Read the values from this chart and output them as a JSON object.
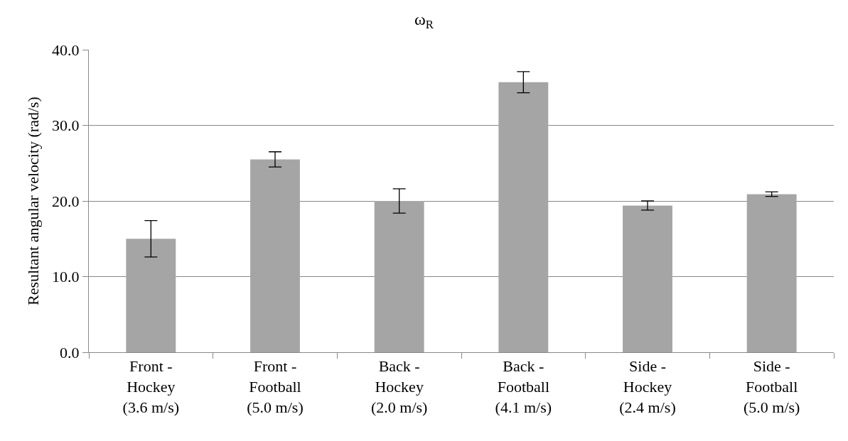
{
  "chart_data": {
    "type": "bar",
    "title": "ω$_{R}$",
    "ylabel": "Resultant angular velocity (rad/s)",
    "categories": [
      "Front -\nHockey\n(3.6 m/s)",
      "Front -\nFootball\n(5.0 m/s)",
      "Back -\nHockey\n(2.0 m/s)",
      "Back -\nFootball\n(4.1 m/s)",
      "Side -\nHockey\n(2.4 m/s)",
      "Side -\nFootball\n(5.0 m/s)"
    ],
    "values": [
      15.0,
      25.5,
      20.0,
      35.7,
      19.4,
      20.9
    ],
    "errors": [
      2.4,
      1.0,
      1.6,
      1.4,
      0.6,
      0.3
    ],
    "color": "#a5a5a5",
    "ylim": [
      0,
      40
    ],
    "yticks": [
      {
        "value": 0,
        "label": "0.0"
      },
      {
        "value": 10,
        "label": "10.0"
      },
      {
        "value": 20,
        "label": "20.0"
      },
      {
        "value": 30,
        "label": "30.0"
      },
      {
        "value": 40,
        "label": "40.0"
      }
    ],
    "grid": "y"
  }
}
